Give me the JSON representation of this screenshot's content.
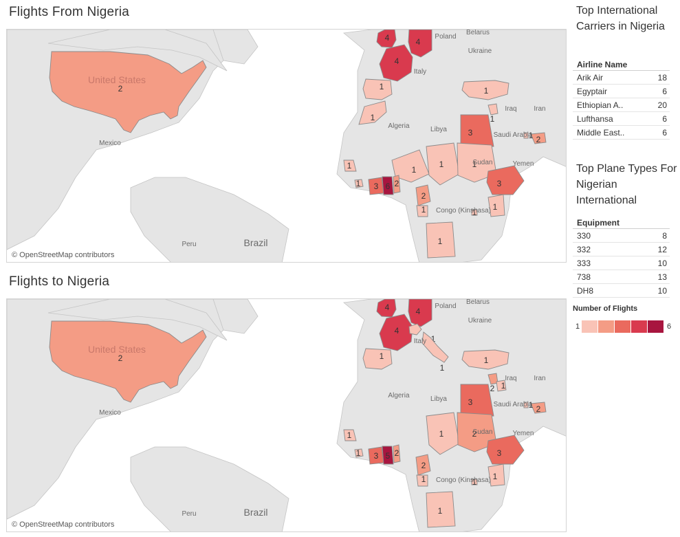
{
  "sheets": {
    "from_title": "Flights From Nigeria",
    "to_title": "Flights to Nigeria",
    "attribution": "© OpenStreetMap contributors"
  },
  "map_labels": [
    {
      "text": "Poland"
    },
    {
      "text": "Belarus"
    },
    {
      "text": "Ukraine"
    },
    {
      "text": "Italy"
    },
    {
      "text": "Iraq"
    },
    {
      "text": "Iran"
    },
    {
      "text": "Saudi Arabia"
    },
    {
      "text": "Yemen"
    },
    {
      "text": "Algeria"
    },
    {
      "text": "Libya"
    },
    {
      "text": "Mexico"
    },
    {
      "text": "Peru"
    },
    {
      "text": "Brazil"
    },
    {
      "text": "Congo (Kinshasa)"
    },
    {
      "text": "United States"
    },
    {
      "text": "Sudan"
    }
  ],
  "carriers": {
    "title": "Top International Carriers in Nigeria",
    "column": "Airline Name",
    "rows": [
      {
        "name": "Arik Air",
        "value": "18"
      },
      {
        "name": "Egyptair",
        "value": "6"
      },
      {
        "name": "Ethiopian A..",
        "value": "20"
      },
      {
        "name": "Lufthansa",
        "value": "6"
      },
      {
        "name": "Middle East..",
        "value": "6"
      }
    ]
  },
  "planes": {
    "title": "Top Plane Types For Nigerian International",
    "column": "Equipment",
    "rows": [
      {
        "name": "330",
        "value": "8"
      },
      {
        "name": "332",
        "value": "12"
      },
      {
        "name": "333",
        "value": "10"
      },
      {
        "name": "738",
        "value": "13"
      },
      {
        "name": "DH8",
        "value": "10"
      }
    ]
  },
  "legend": {
    "title": "Number of Flights",
    "min": "1",
    "max": "6",
    "colors": [
      "#f9c3b6",
      "#f49c85",
      "#ea6a5e",
      "#d93a4e",
      "#a8153f"
    ]
  },
  "map_from": {
    "countries": [
      {
        "name": "United States",
        "flights": 2
      },
      {
        "name": "United Kingdom",
        "flights": 4
      },
      {
        "name": "Germany",
        "flights": 4
      },
      {
        "name": "France",
        "flights": 4
      },
      {
        "name": "Spain",
        "flights": 1
      },
      {
        "name": "Turkey",
        "flights": 1
      },
      {
        "name": "Morocco",
        "flights": 1
      },
      {
        "name": "Lebanon",
        "flights": 1
      },
      {
        "name": "Egypt",
        "flights": 3
      },
      {
        "name": "UAE",
        "flights": 2
      },
      {
        "name": "Qatar",
        "flights": 1
      },
      {
        "name": "Senegal",
        "flights": 1
      },
      {
        "name": "Mali",
        "flights": 1
      },
      {
        "name": "Niger",
        "flights": 1
      },
      {
        "name": "Chad",
        "flights": 1
      },
      {
        "name": "Ethiopia",
        "flights": 3
      },
      {
        "name": "Sierra Leone",
        "flights": 1
      },
      {
        "name": "Cote d'Ivoire",
        "flights": 3
      },
      {
        "name": "Ghana",
        "flights": 6
      },
      {
        "name": "Benin",
        "flights": 2
      },
      {
        "name": "Cameroon",
        "flights": 2
      },
      {
        "name": "Gabon",
        "flights": 1
      },
      {
        "name": "Kenya",
        "flights": 1
      },
      {
        "name": "Rwanda",
        "flights": 1
      },
      {
        "name": "Angola",
        "flights": 1
      }
    ]
  },
  "map_to": {
    "countries": [
      {
        "name": "United States",
        "flights": 2
      },
      {
        "name": "United Kingdom",
        "flights": 4
      },
      {
        "name": "Germany",
        "flights": 4
      },
      {
        "name": "France",
        "flights": 4
      },
      {
        "name": "Switzerland",
        "flights": 1
      },
      {
        "name": "Italy",
        "flights": 1
      },
      {
        "name": "Spain",
        "flights": 1
      },
      {
        "name": "Turkey",
        "flights": 1
      },
      {
        "name": "Lebanon",
        "flights": 2
      },
      {
        "name": "Jordan",
        "flights": 1
      },
      {
        "name": "Egypt",
        "flights": 3
      },
      {
        "name": "UAE",
        "flights": 2
      },
      {
        "name": "Qatar",
        "flights": 1
      },
      {
        "name": "Senegal",
        "flights": 1
      },
      {
        "name": "Niger",
        "flights": 1
      },
      {
        "name": "Chad",
        "flights": 2
      },
      {
        "name": "Ethiopia",
        "flights": 3
      },
      {
        "name": "Sierra Leone",
        "flights": 1
      },
      {
        "name": "Cote d'Ivoire",
        "flights": 3
      },
      {
        "name": "Ghana",
        "flights": 5
      },
      {
        "name": "Benin",
        "flights": 2
      },
      {
        "name": "Cameroon",
        "flights": 2
      },
      {
        "name": "Gabon",
        "flights": 1
      },
      {
        "name": "Kenya",
        "flights": 1
      },
      {
        "name": "Rwanda",
        "flights": 1
      },
      {
        "name": "Angola",
        "flights": 1
      }
    ]
  }
}
